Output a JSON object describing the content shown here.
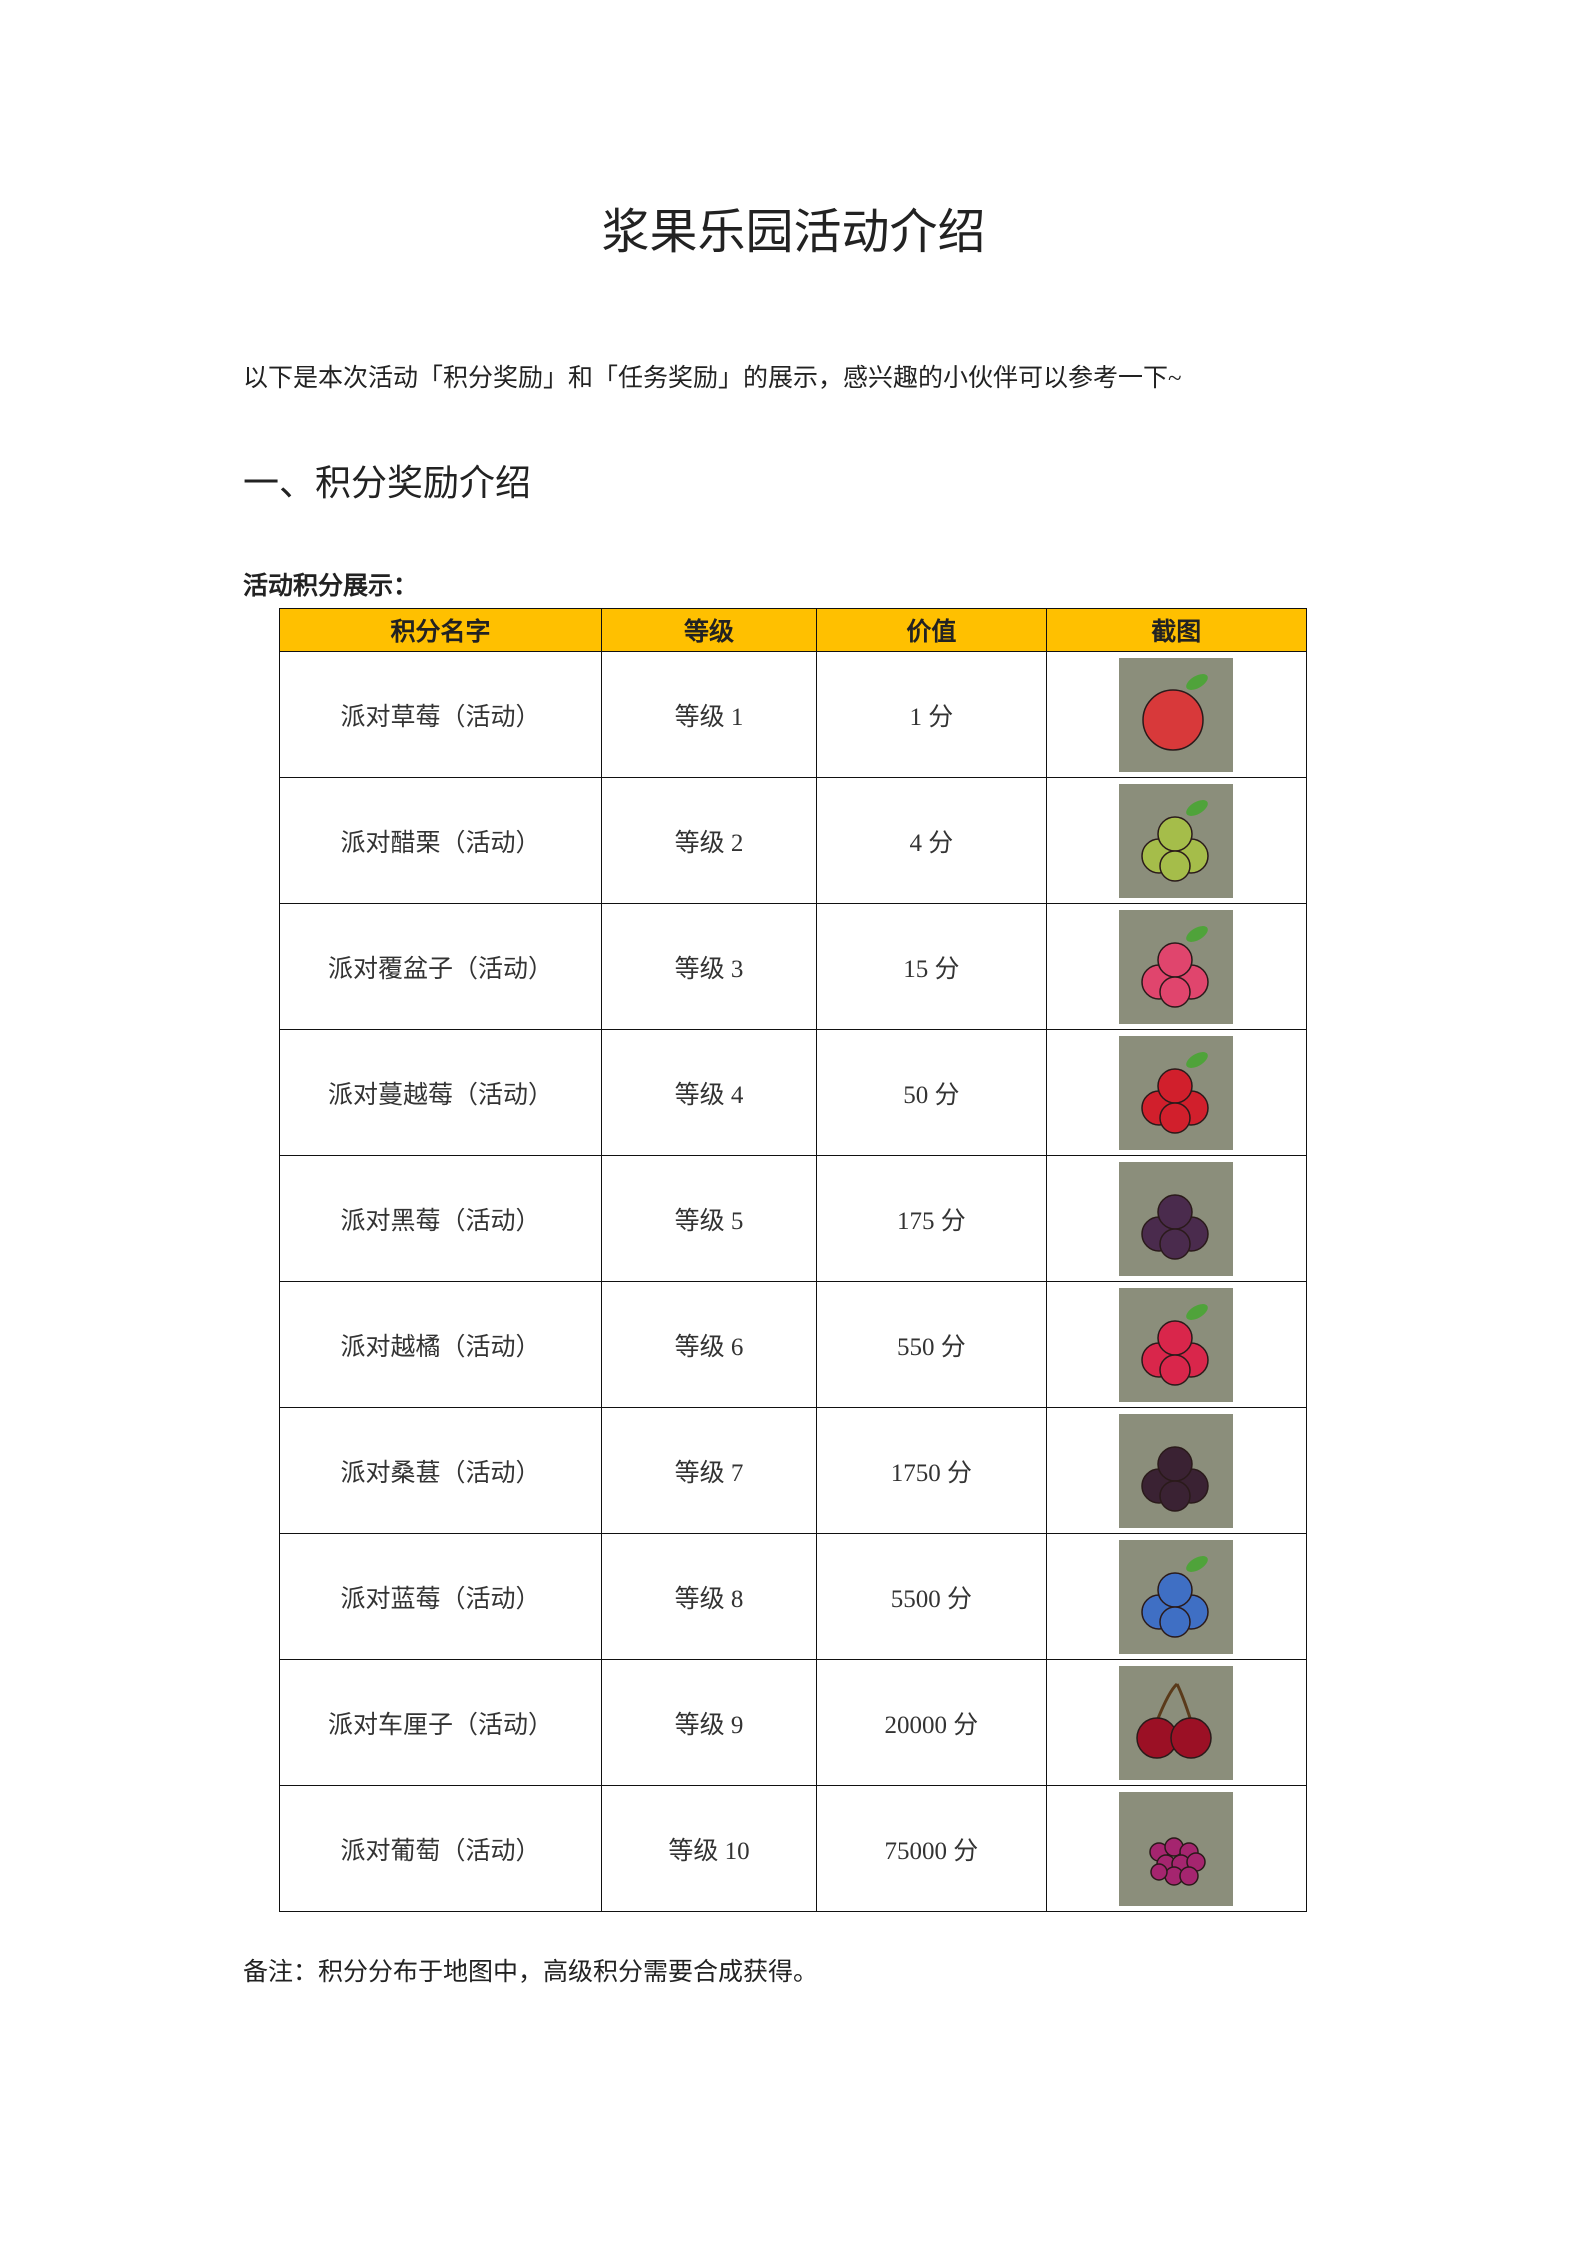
{
  "title": "浆果乐园活动介绍",
  "intro": "以下是本次活动「积分奖励」和「任务奖励」的展示，感兴趣的小伙伴可以参考一下~",
  "section_heading": "一、积分奖励介绍",
  "table_caption": "活动积分展示：",
  "table": {
    "header_color": "#ffc000",
    "headers": [
      "积分名字",
      "等级",
      "价值",
      "截图"
    ],
    "rows": [
      {
        "name": "派对草莓（活动）",
        "level": "等级 1",
        "value": "1 分",
        "icon": "strawberry-icon",
        "color": "#d8393a"
      },
      {
        "name": "派对醋栗（活动）",
        "level": "等级 2",
        "value": "4 分",
        "icon": "gooseberry-icon",
        "color": "#a5bd4a"
      },
      {
        "name": "派对覆盆子（活动）",
        "level": "等级 3",
        "value": "15 分",
        "icon": "raspberry-icon",
        "color": "#e0456d"
      },
      {
        "name": "派对蔓越莓（活动）",
        "level": "等级 4",
        "value": "50 分",
        "icon": "cranberry-icon",
        "color": "#d11f2c"
      },
      {
        "name": "派对黑莓（活动）",
        "level": "等级 5",
        "value": "175 分",
        "icon": "blackberry-icon",
        "color": "#4a2b4d"
      },
      {
        "name": "派对越橘（活动）",
        "level": "等级 6",
        "value": "550 分",
        "icon": "lingonberry-icon",
        "color": "#d9264b"
      },
      {
        "name": "派对桑葚（活动）",
        "level": "等级 7",
        "value": "1750 分",
        "icon": "mulberry-icon",
        "color": "#3a2233"
      },
      {
        "name": "派对蓝莓（活动）",
        "level": "等级 8",
        "value": "5500 分",
        "icon": "blueberry-icon",
        "color": "#3f6fc4"
      },
      {
        "name": "派对车厘子（活动）",
        "level": "等级 9",
        "value": "20000 分",
        "icon": "cherry-icon",
        "color": "#9b1025"
      },
      {
        "name": "派对葡萄（活动）",
        "level": "等级 10",
        "value": "75000 分",
        "icon": "grape-icon",
        "color": "#a5256f"
      }
    ]
  },
  "note": "备注：积分分布于地图中，高级积分需要合成获得。",
  "image_background": "#8b8e7b"
}
